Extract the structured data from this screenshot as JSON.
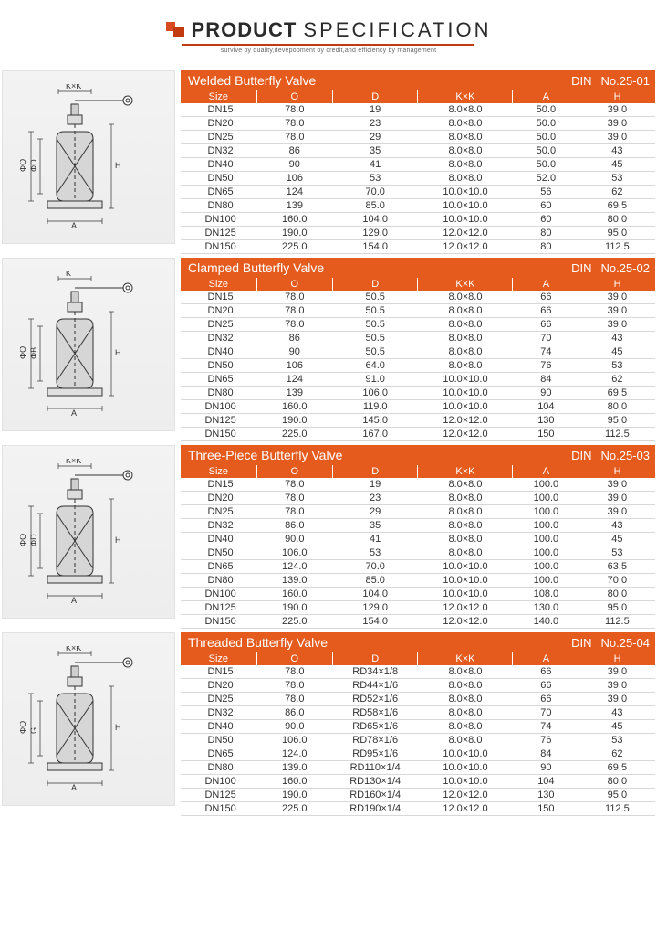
{
  "header": {
    "title_bold": "PRODUCT",
    "title_thin": "SPECIFICATION",
    "subtitle": "survive by quality,devepopment by credit,and efficiency by management",
    "accent": "#c23a10",
    "accent2": "#e55b1e"
  },
  "columns": [
    "Size",
    "O",
    "D",
    "K×K",
    "A",
    "H"
  ],
  "col_widths_pct": [
    16,
    16,
    18,
    20,
    14,
    16
  ],
  "sections": [
    {
      "name": "Welded Butterfly Valve",
      "std": "DIN",
      "code": "No.25-01",
      "diagram_dims": [
        "K×K",
        "H",
        "ΦO",
        "ΦD",
        "A"
      ],
      "rows": [
        [
          "DN15",
          "78.0",
          "19",
          "8.0×8.0",
          "50.0",
          "39.0"
        ],
        [
          "DN20",
          "78.0",
          "23",
          "8.0×8.0",
          "50.0",
          "39.0"
        ],
        [
          "DN25",
          "78.0",
          "29",
          "8.0×8.0",
          "50.0",
          "39.0"
        ],
        [
          "DN32",
          "86",
          "35",
          "8.0×8.0",
          "50.0",
          "43"
        ],
        [
          "DN40",
          "90",
          "41",
          "8.0×8.0",
          "50.0",
          "45"
        ],
        [
          "DN50",
          "106",
          "53",
          "8.0×8.0",
          "52.0",
          "53"
        ],
        [
          "DN65",
          "124",
          "70.0",
          "10.0×10.0",
          "56",
          "62"
        ],
        [
          "DN80",
          "139",
          "85.0",
          "10.0×10.0",
          "60",
          "69.5"
        ],
        [
          "DN100",
          "160.0",
          "104.0",
          "10.0×10.0",
          "60",
          "80.0"
        ],
        [
          "DN125",
          "190.0",
          "129.0",
          "12.0×12.0",
          "80",
          "95.0"
        ],
        [
          "DN150",
          "225.0",
          "154.0",
          "12.0×12.0",
          "80",
          "112.5"
        ]
      ]
    },
    {
      "name": "Clamped Butterfly Valve",
      "std": "DIN",
      "code": "No.25-02",
      "diagram_dims": [
        "K",
        "H",
        "ΦO",
        "ΦB",
        "A"
      ],
      "rows": [
        [
          "DN15",
          "78.0",
          "50.5",
          "8.0×8.0",
          "66",
          "39.0"
        ],
        [
          "DN20",
          "78.0",
          "50.5",
          "8.0×8.0",
          "66",
          "39.0"
        ],
        [
          "DN25",
          "78.0",
          "50.5",
          "8.0×8.0",
          "66",
          "39.0"
        ],
        [
          "DN32",
          "86",
          "50.5",
          "8.0×8.0",
          "70",
          "43"
        ],
        [
          "DN40",
          "90",
          "50.5",
          "8.0×8.0",
          "74",
          "45"
        ],
        [
          "DN50",
          "106",
          "64.0",
          "8.0×8.0",
          "76",
          "53"
        ],
        [
          "DN65",
          "124",
          "91.0",
          "10.0×10.0",
          "84",
          "62"
        ],
        [
          "DN80",
          "139",
          "106.0",
          "10.0×10.0",
          "90",
          "69.5"
        ],
        [
          "DN100",
          "160.0",
          "119.0",
          "10.0×10.0",
          "104",
          "80.0"
        ],
        [
          "DN125",
          "190.0",
          "145.0",
          "12.0×12.0",
          "130",
          "95.0"
        ],
        [
          "DN150",
          "225.0",
          "167.0",
          "12.0×12.0",
          "150",
          "112.5"
        ]
      ]
    },
    {
      "name": "Three-Piece Butterfly Valve",
      "std": "DIN",
      "code": "No.25-03",
      "diagram_dims": [
        "K×K",
        "H",
        "ΦO",
        "ΦD",
        "A"
      ],
      "rows": [
        [
          "DN15",
          "78.0",
          "19",
          "8.0×8.0",
          "100.0",
          "39.0"
        ],
        [
          "DN20",
          "78.0",
          "23",
          "8.0×8.0",
          "100.0",
          "39.0"
        ],
        [
          "DN25",
          "78.0",
          "29",
          "8.0×8.0",
          "100.0",
          "39.0"
        ],
        [
          "DN32",
          "86.0",
          "35",
          "8.0×8.0",
          "100.0",
          "43"
        ],
        [
          "DN40",
          "90.0",
          "41",
          "8.0×8.0",
          "100.0",
          "45"
        ],
        [
          "DN50",
          "106.0",
          "53",
          "8.0×8.0",
          "100.0",
          "53"
        ],
        [
          "DN65",
          "124.0",
          "70.0",
          "10.0×10.0",
          "100.0",
          "63.5"
        ],
        [
          "DN80",
          "139.0",
          "85.0",
          "10.0×10.0",
          "100.0",
          "70.0"
        ],
        [
          "DN100",
          "160.0",
          "104.0",
          "10.0×10.0",
          "108.0",
          "80.0"
        ],
        [
          "DN125",
          "190.0",
          "129.0",
          "12.0×12.0",
          "130.0",
          "95.0"
        ],
        [
          "DN150",
          "225.0",
          "154.0",
          "12.0×12.0",
          "140.0",
          "112.5"
        ]
      ]
    },
    {
      "name": "Threaded Butterfly Valve",
      "std": "DIN",
      "code": "No.25-04",
      "diagram_dims": [
        "K×K",
        "H",
        "ΦO",
        "G",
        "A"
      ],
      "rows": [
        [
          "DN15",
          "78.0",
          "RD34×1/8",
          "8.0×8.0",
          "66",
          "39.0"
        ],
        [
          "DN20",
          "78.0",
          "RD44×1/6",
          "8.0×8.0",
          "66",
          "39.0"
        ],
        [
          "DN25",
          "78.0",
          "RD52×1/6",
          "8.0×8.0",
          "66",
          "39.0"
        ],
        [
          "DN32",
          "86.0",
          "RD58×1/6",
          "8.0×8.0",
          "70",
          "43"
        ],
        [
          "DN40",
          "90.0",
          "RD65×1/6",
          "8.0×8.0",
          "74",
          "45"
        ],
        [
          "DN50",
          "106.0",
          "RD78×1/6",
          "8.0×8.0",
          "76",
          "53"
        ],
        [
          "DN65",
          "124.0",
          "RD95×1/6",
          "10.0×10.0",
          "84",
          "62"
        ],
        [
          "DN80",
          "139.0",
          "RD110×1/4",
          "10.0×10.0",
          "90",
          "69.5"
        ],
        [
          "DN100",
          "160.0",
          "RD130×1/4",
          "10.0×10.0",
          "104",
          "80.0"
        ],
        [
          "DN125",
          "190.0",
          "RD160×1/4",
          "12.0×12.0",
          "130",
          "95.0"
        ],
        [
          "DN150",
          "225.0",
          "RD190×1/4",
          "12.0×12.0",
          "150",
          "112.5"
        ]
      ]
    }
  ]
}
